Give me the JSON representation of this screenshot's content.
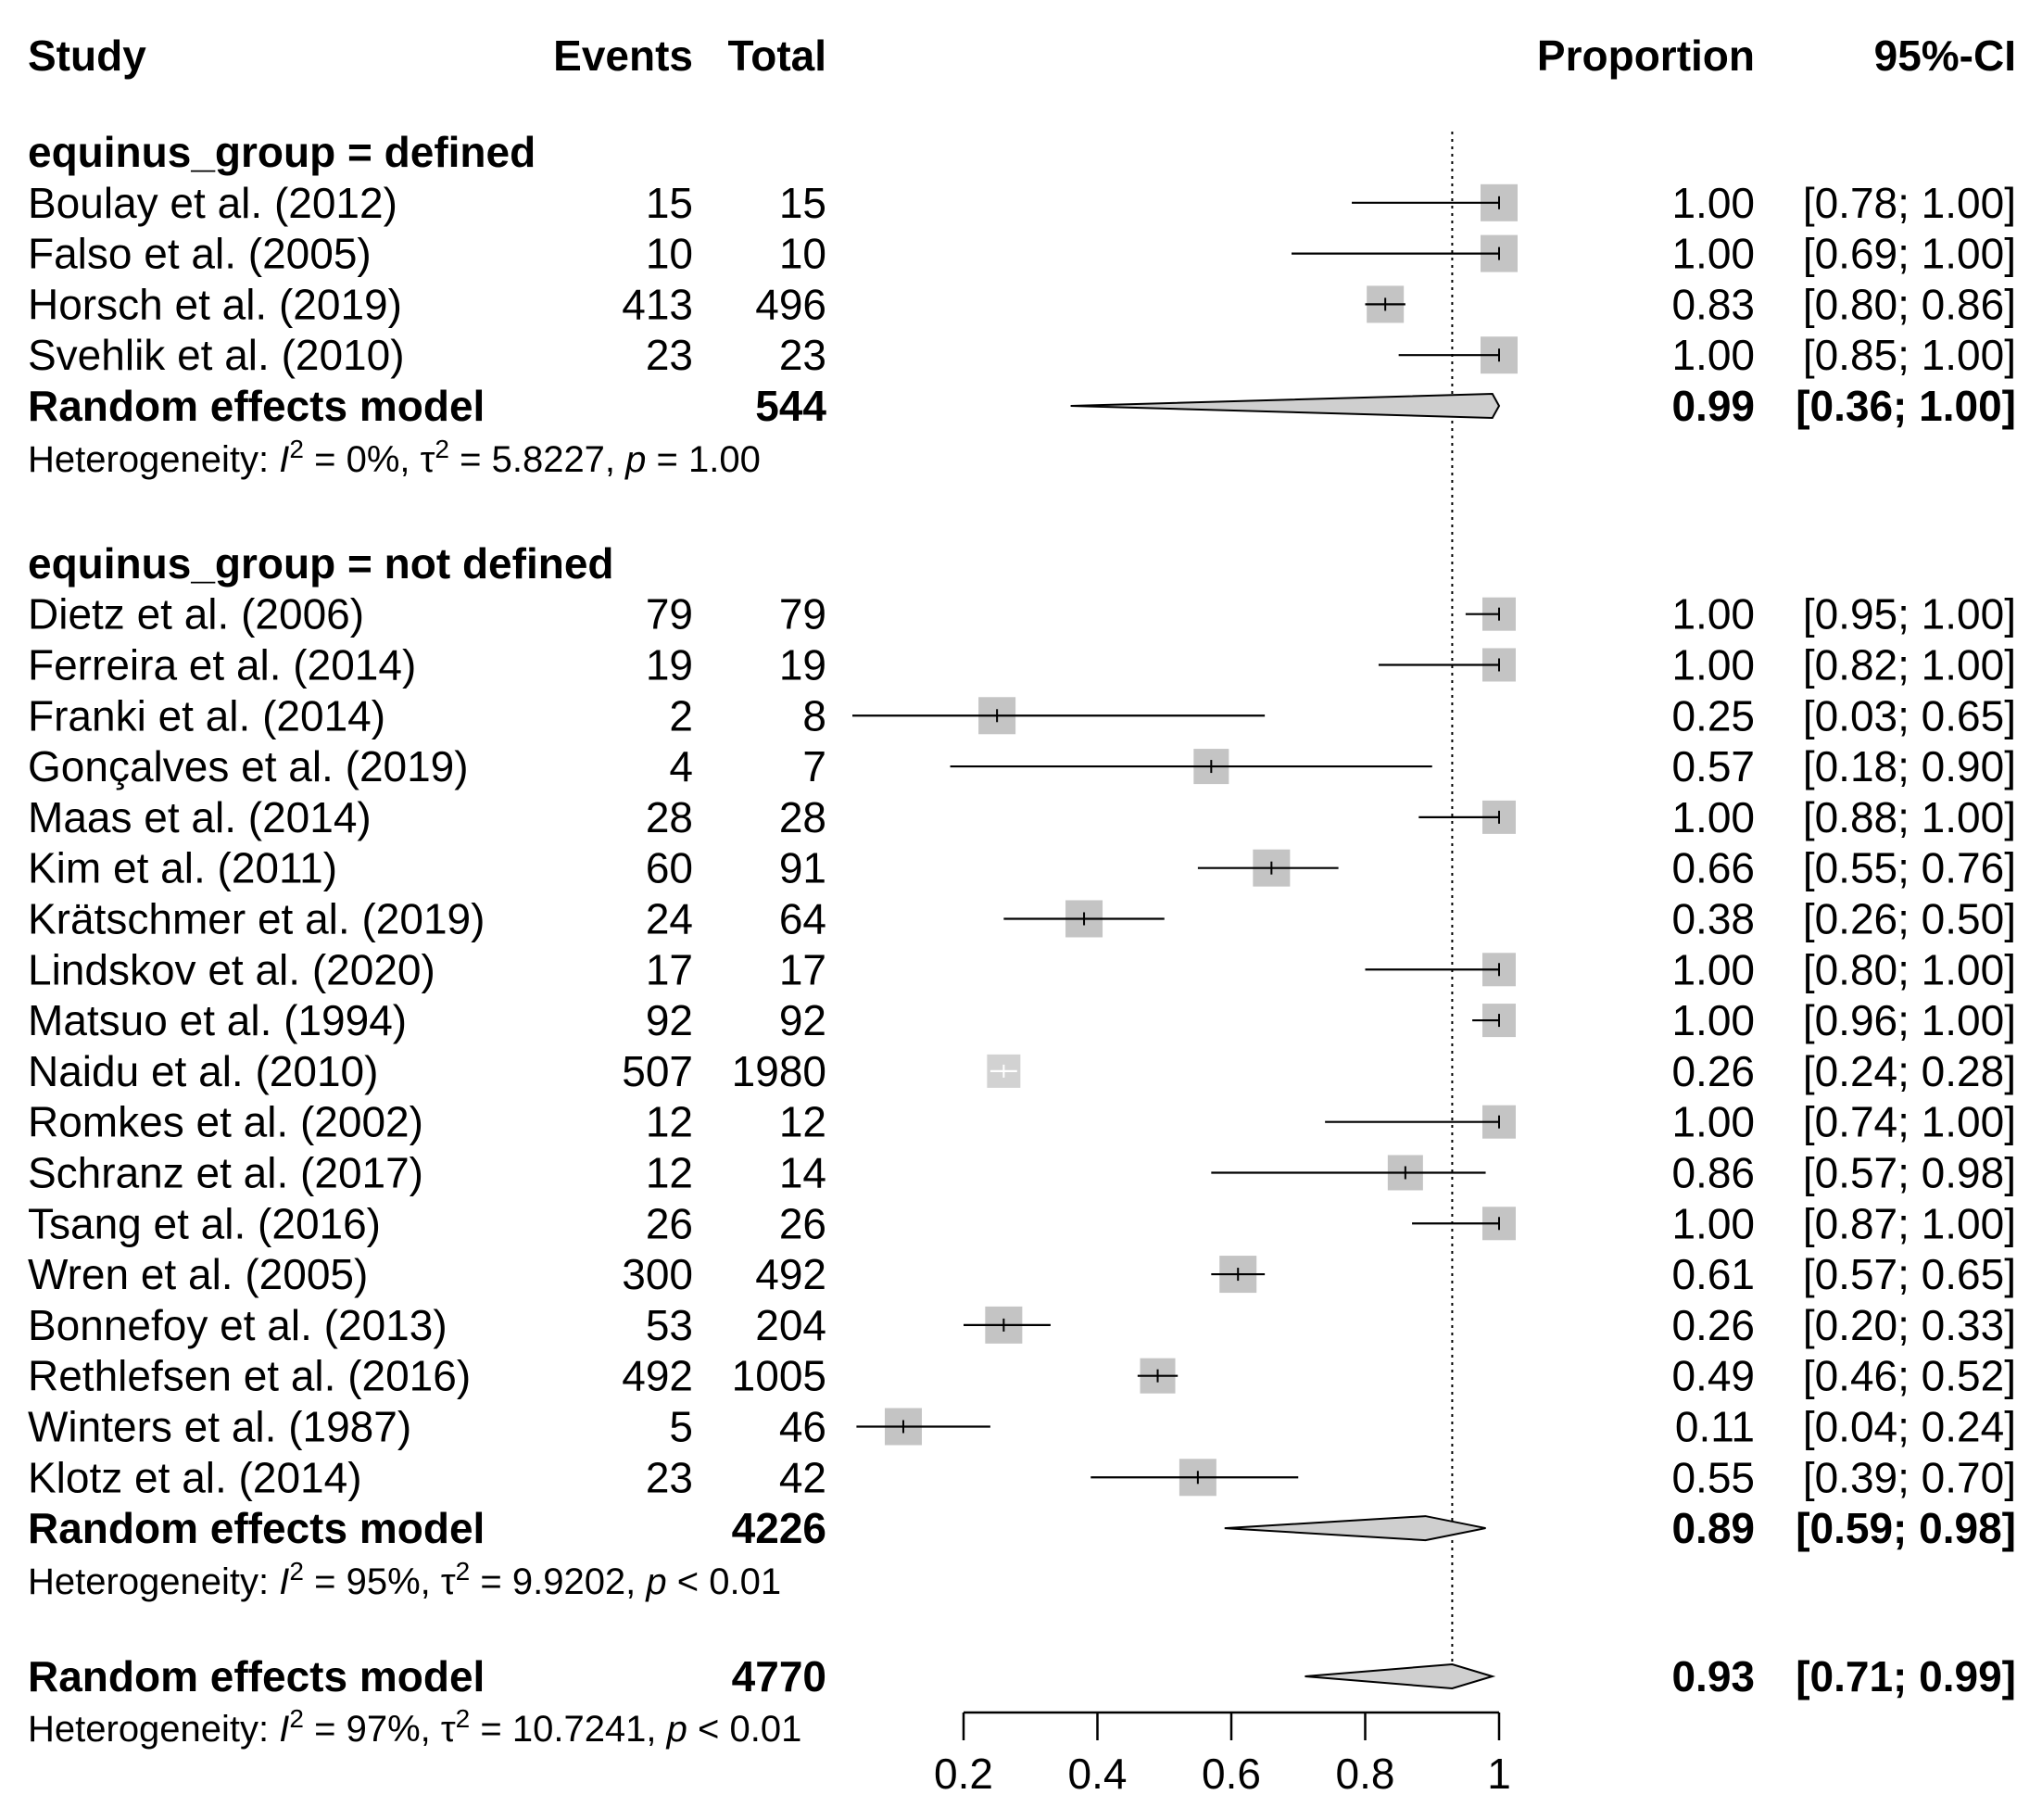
{
  "chart_data": {
    "type": "forest",
    "headers": {
      "study": "Study",
      "events": "Events",
      "total": "Total",
      "proportion": "Proportion",
      "ci": "95%-CI"
    },
    "axis": {
      "xlim": [
        0.2,
        1.0
      ],
      "ticks": [
        "0.2",
        "0.4",
        "0.6",
        "0.8",
        "1"
      ],
      "tick_values": [
        0.2,
        0.4,
        0.6,
        0.8,
        1.0
      ],
      "reference_line": 0.93,
      "reference_style": "dotted"
    },
    "groups": [
      {
        "label": "equinus_group = defined",
        "studies": [
          {
            "study": "Boulay et al. (2012)",
            "events": "15",
            "total": "15",
            "prop": 1.0,
            "lo": 0.78,
            "hi": 1.0,
            "weight": 1.0,
            "prop_text": "1.00",
            "ci_text": "[0.78; 1.00]"
          },
          {
            "study": "Falso et al. (2005)",
            "events": "10",
            "total": "10",
            "prop": 1.0,
            "lo": 0.69,
            "hi": 1.0,
            "weight": 1.0,
            "prop_text": "1.00",
            "ci_text": "[0.69; 1.00]"
          },
          {
            "study": "Horsch et al. (2019)",
            "events": "413",
            "total": "496",
            "prop": 0.83,
            "lo": 0.8,
            "hi": 0.86,
            "weight": 1.0,
            "prop_text": "0.83",
            "ci_text": "[0.80; 0.86]"
          },
          {
            "study": "Svehlik et al. (2010)",
            "events": "23",
            "total": "23",
            "prop": 1.0,
            "lo": 0.85,
            "hi": 1.0,
            "weight": 1.0,
            "prop_text": "1.00",
            "ci_text": "[0.85; 1.00]"
          }
        ],
        "model": {
          "label": "Random effects model",
          "total": "544",
          "prop": 0.99,
          "lo": 0.36,
          "hi": 1.0,
          "prop_text": "0.99",
          "ci_text": "[0.36; 1.00]"
        },
        "heterogeneity": {
          "prefix": "Heterogeneity: ",
          "i2_symbol": "I",
          "i2_value": " = 0%, ",
          "tau_symbol": "τ",
          "tau_value": " = 5.8227, ",
          "p_symbol": "p",
          "p_value": " = 1.00"
        }
      },
      {
        "label": "equinus_group = not defined",
        "studies": [
          {
            "study": "Dietz et al. (2006)",
            "events": "79",
            "total": "79",
            "prop": 1.0,
            "lo": 0.95,
            "hi": 1.0,
            "weight": 0.9,
            "prop_text": "1.00",
            "ci_text": "[0.95; 1.00]"
          },
          {
            "study": "Ferreira et al. (2014)",
            "events": "19",
            "total": "19",
            "prop": 1.0,
            "lo": 0.82,
            "hi": 1.0,
            "weight": 0.9,
            "prop_text": "1.00",
            "ci_text": "[0.82; 1.00]"
          },
          {
            "study": "Franki et al. (2014)",
            "events": "2",
            "total": "8",
            "prop": 0.25,
            "lo": 0.03,
            "hi": 0.65,
            "weight": 1.0,
            "prop_text": "0.25",
            "ci_text": "[0.03; 0.65]"
          },
          {
            "study": "Gonçalves et al. (2019)",
            "events": "4",
            "total": "7",
            "prop": 0.57,
            "lo": 0.18,
            "hi": 0.9,
            "weight": 0.95,
            "prop_text": "0.57",
            "ci_text": "[0.18; 0.90]"
          },
          {
            "study": "Maas et al. (2014)",
            "events": "28",
            "total": "28",
            "prop": 1.0,
            "lo": 0.88,
            "hi": 1.0,
            "weight": 0.9,
            "prop_text": "1.00",
            "ci_text": "[0.88; 1.00]"
          },
          {
            "study": "Kim et al. (2011)",
            "events": "60",
            "total": "91",
            "prop": 0.66,
            "lo": 0.55,
            "hi": 0.76,
            "weight": 1.0,
            "prop_text": "0.66",
            "ci_text": "[0.55; 0.76]"
          },
          {
            "study": "Krätschmer et al. (2019)",
            "events": "24",
            "total": "64",
            "prop": 0.38,
            "lo": 0.26,
            "hi": 0.5,
            "weight": 1.0,
            "prop_text": "0.38",
            "ci_text": "[0.26; 0.50]"
          },
          {
            "study": "Lindskov et al. (2020)",
            "events": "17",
            "total": "17",
            "prop": 1.0,
            "lo": 0.8,
            "hi": 1.0,
            "weight": 0.9,
            "prop_text": "1.00",
            "ci_text": "[0.80; 1.00]"
          },
          {
            "study": "Matsuo et al. (1994)",
            "events": "92",
            "total": "92",
            "prop": 1.0,
            "lo": 0.96,
            "hi": 1.0,
            "weight": 0.9,
            "prop_text": "1.00",
            "ci_text": "[0.96; 1.00]"
          },
          {
            "study": "Naidu et al. (2010)",
            "events": "507",
            "total": "1980",
            "prop": 0.26,
            "lo": 0.24,
            "hi": 0.28,
            "weight": 0.9,
            "prop_text": "0.26",
            "ci_text": "[0.24; 0.28]"
          },
          {
            "study": "Romkes et al. (2002)",
            "events": "12",
            "total": "12",
            "prop": 1.0,
            "lo": 0.74,
            "hi": 1.0,
            "weight": 0.9,
            "prop_text": "1.00",
            "ci_text": "[0.74; 1.00]"
          },
          {
            "study": "Schranz et al. (2017)",
            "events": "12",
            "total": "14",
            "prop": 0.86,
            "lo": 0.57,
            "hi": 0.98,
            "weight": 0.95,
            "prop_text": "0.86",
            "ci_text": "[0.57; 0.98]"
          },
          {
            "study": "Tsang et al. (2016)",
            "events": "26",
            "total": "26",
            "prop": 1.0,
            "lo": 0.87,
            "hi": 1.0,
            "weight": 0.9,
            "prop_text": "1.00",
            "ci_text": "[0.87; 1.00]"
          },
          {
            "study": "Wren et al. (2005)",
            "events": "300",
            "total": "492",
            "prop": 0.61,
            "lo": 0.57,
            "hi": 0.65,
            "weight": 1.0,
            "prop_text": "0.61",
            "ci_text": "[0.57; 0.65]"
          },
          {
            "study": "Bonnefoy et al. (2013)",
            "events": "53",
            "total": "204",
            "prop": 0.26,
            "lo": 0.2,
            "hi": 0.33,
            "weight": 1.0,
            "prop_text": "0.26",
            "ci_text": "[0.20; 0.33]"
          },
          {
            "study": "Rethlefsen et al. (2016)",
            "events": "492",
            "total": "1005",
            "prop": 0.49,
            "lo": 0.46,
            "hi": 0.52,
            "weight": 0.95,
            "prop_text": "0.49",
            "ci_text": "[0.46; 0.52]"
          },
          {
            "study": "Winters et al. (1987)",
            "events": "5",
            "total": "46",
            "prop": 0.11,
            "lo": 0.04,
            "hi": 0.24,
            "weight": 1.0,
            "prop_text": "0.11",
            "ci_text": "[0.04; 0.24]"
          },
          {
            "study": "Klotz et al. (2014)",
            "events": "23",
            "total": "42",
            "prop": 0.55,
            "lo": 0.39,
            "hi": 0.7,
            "weight": 1.0,
            "prop_text": "0.55",
            "ci_text": "[0.39; 0.70]"
          }
        ],
        "model": {
          "label": "Random effects model",
          "total": "4226",
          "prop": 0.89,
          "lo": 0.59,
          "hi": 0.98,
          "prop_text": "0.89",
          "ci_text": "[0.59; 0.98]"
        },
        "heterogeneity": {
          "prefix": "Heterogeneity: ",
          "i2_symbol": "I",
          "i2_value": " = 95%, ",
          "tau_symbol": "τ",
          "tau_value": " = 9.9202, ",
          "p_symbol": "p",
          "p_value": " < 0.01"
        }
      }
    ],
    "overall": {
      "model": {
        "label": "Random effects model",
        "total": "4770",
        "prop": 0.93,
        "lo": 0.71,
        "hi": 0.99,
        "prop_text": "0.93",
        "ci_text": "[0.71; 0.99]"
      },
      "heterogeneity": {
        "prefix": "Heterogeneity: ",
        "i2_symbol": "I",
        "i2_value": " = 97%, ",
        "tau_symbol": "τ",
        "tau_value": " = 10.7241, ",
        "p_symbol": "p",
        "p_value": " < 0.01"
      }
    },
    "colors": {
      "text": "#000000",
      "subgroup_text": "#a8a8a8",
      "square": "#c4c4c4",
      "ci_line": "#000000",
      "diamond_fill": "#cfcfcf"
    }
  }
}
